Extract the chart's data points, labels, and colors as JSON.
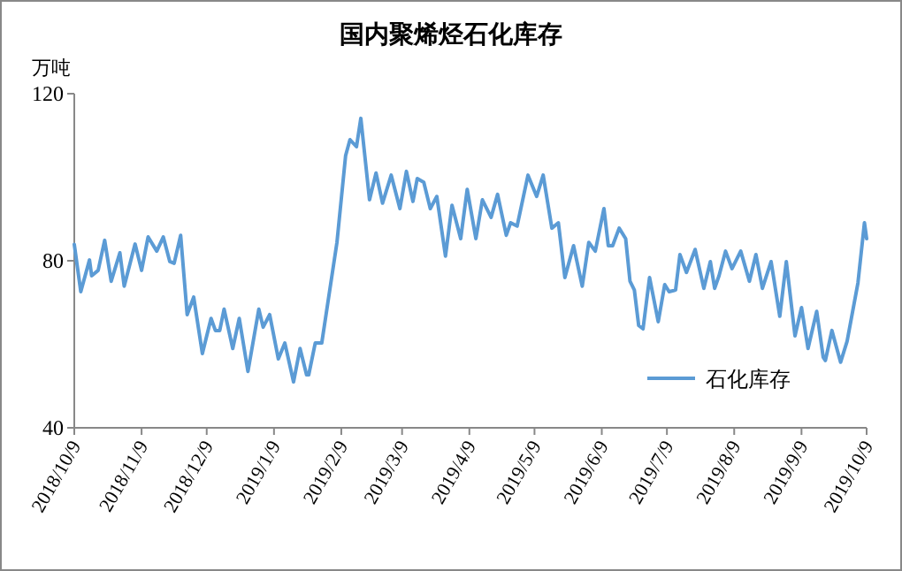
{
  "chart_data": {
    "type": "line",
    "title": "国内聚烯烃石化库存",
    "ylabel": "万吨",
    "legend": "bottom right",
    "grid": false,
    "marker": "none",
    "line_style": "solid",
    "xlim": [
      "2018-10-09",
      "2019-10-09"
    ],
    "ylim": [
      40,
      120
    ],
    "yticks": [
      40,
      80,
      120
    ],
    "xticks": [
      {
        "value": "2018-10-09",
        "label": "2018/10/9"
      },
      {
        "value": "2018-11-09",
        "label": "2018/11/9"
      },
      {
        "value": "2018-12-09",
        "label": "2018/12/9"
      },
      {
        "value": "2019-01-09",
        "label": "2019/1/9"
      },
      {
        "value": "2019-02-09",
        "label": "2019/2/9"
      },
      {
        "value": "2019-03-09",
        "label": "2019/3/9"
      },
      {
        "value": "2019-04-09",
        "label": "2019/4/9"
      },
      {
        "value": "2019-05-09",
        "label": "2019/5/9"
      },
      {
        "value": "2019-06-09",
        "label": "2019/6/9"
      },
      {
        "value": "2019-07-09",
        "label": "2019/7/9"
      },
      {
        "value": "2019-08-09",
        "label": "2019/8/9"
      },
      {
        "value": "2019-09-09",
        "label": "2019/9/9"
      },
      {
        "value": "2019-10-09",
        "label": "2019/10/9"
      }
    ],
    "x": [
      "2018-10-09",
      "2018-10-12",
      "2018-10-16",
      "2018-10-17",
      "2018-10-20",
      "2018-10-23",
      "2018-10-26",
      "2018-10-30",
      "2018-11-01",
      "2018-11-06",
      "2018-11-09",
      "2018-11-12",
      "2018-11-16",
      "2018-11-19",
      "2018-11-22",
      "2018-11-24",
      "2018-11-27",
      "2018-11-30",
      "2018-12-03",
      "2018-12-07",
      "2018-12-11",
      "2018-12-13",
      "2018-12-15",
      "2018-12-17",
      "2018-12-21",
      "2018-12-24",
      "2018-12-28",
      "2019-01-02",
      "2019-01-04",
      "2019-01-07",
      "2019-01-11",
      "2019-01-14",
      "2019-01-18",
      "2019-01-21",
      "2019-01-24",
      "2019-01-25",
      "2019-01-28",
      "2019-01-31",
      "2019-02-07",
      "2019-02-11",
      "2019-02-13",
      "2019-02-16",
      "2019-02-18",
      "2019-02-22",
      "2019-02-25",
      "2019-02-28",
      "2019-03-04",
      "2019-03-08",
      "2019-03-11",
      "2019-03-14",
      "2019-03-16",
      "2019-03-19",
      "2019-03-22",
      "2019-03-25",
      "2019-03-29",
      "2019-04-01",
      "2019-04-05",
      "2019-04-08",
      "2019-04-12",
      "2019-04-15",
      "2019-04-19",
      "2019-04-22",
      "2019-04-26",
      "2019-04-28",
      "2019-05-01",
      "2019-05-06",
      "2019-05-10",
      "2019-05-13",
      "2019-05-17",
      "2019-05-20",
      "2019-05-23",
      "2019-05-27",
      "2019-05-31",
      "2019-06-03",
      "2019-06-06",
      "2019-06-10",
      "2019-06-12",
      "2019-06-14",
      "2019-06-17",
      "2019-06-20",
      "2019-06-22",
      "2019-06-24",
      "2019-06-26",
      "2019-06-28",
      "2019-07-01",
      "2019-07-05",
      "2019-07-08",
      "2019-07-10",
      "2019-07-13",
      "2019-07-15",
      "2019-07-18",
      "2019-07-22",
      "2019-07-26",
      "2019-07-29",
      "2019-07-31",
      "2019-08-02",
      "2019-08-05",
      "2019-08-08",
      "2019-08-12",
      "2019-08-16",
      "2019-08-19",
      "2019-08-22",
      "2019-08-26",
      "2019-08-30",
      "2019-09-02",
      "2019-09-06",
      "2019-09-09",
      "2019-09-12",
      "2019-09-16",
      "2019-09-19",
      "2019-09-20",
      "2019-09-23",
      "2019-09-27",
      "2019-09-30",
      "2019-10-05",
      "2019-10-08",
      "2019-10-09"
    ],
    "series": [
      {
        "name": "石化库存",
        "color": "#5b9bd5",
        "values": [
          83.9,
          72.6,
          80.2,
          76.4,
          77.7,
          84.9,
          75.1,
          81.9,
          73.9,
          84.0,
          77.7,
          85.7,
          82.3,
          85.7,
          79.8,
          79.4,
          86.1,
          67.1,
          71.3,
          57.8,
          66.2,
          63.3,
          63.3,
          68.4,
          59.0,
          66.2,
          53.5,
          68.4,
          64.1,
          67.1,
          56.5,
          60.3,
          51.0,
          59.0,
          52.7,
          52.7,
          60.3,
          60.3,
          84.4,
          105.2,
          109.0,
          107.3,
          114.1,
          94.6,
          101.0,
          93.8,
          100.5,
          92.5,
          101.4,
          94.2,
          99.7,
          98.8,
          92.5,
          95.4,
          81.1,
          93.3,
          85.3,
          97.1,
          85.3,
          94.6,
          90.4,
          95.9,
          86.1,
          89.1,
          88.3,
          100.5,
          95.4,
          100.5,
          87.8,
          89.1,
          76.0,
          83.6,
          73.9,
          84.4,
          82.3,
          92.5,
          83.6,
          83.6,
          87.8,
          85.3,
          75.1,
          73.0,
          64.5,
          63.7,
          76.0,
          65.4,
          74.3,
          72.6,
          73.0,
          81.5,
          77.2,
          82.7,
          73.4,
          79.8,
          73.4,
          76.4,
          82.3,
          78.1,
          82.3,
          75.1,
          81.5,
          73.4,
          79.8,
          66.7,
          79.8,
          62.0,
          68.8,
          59.0,
          67.9,
          56.9,
          56.1,
          63.3,
          55.7,
          60.7,
          74.7,
          89.1,
          85.3
        ]
      }
    ]
  }
}
